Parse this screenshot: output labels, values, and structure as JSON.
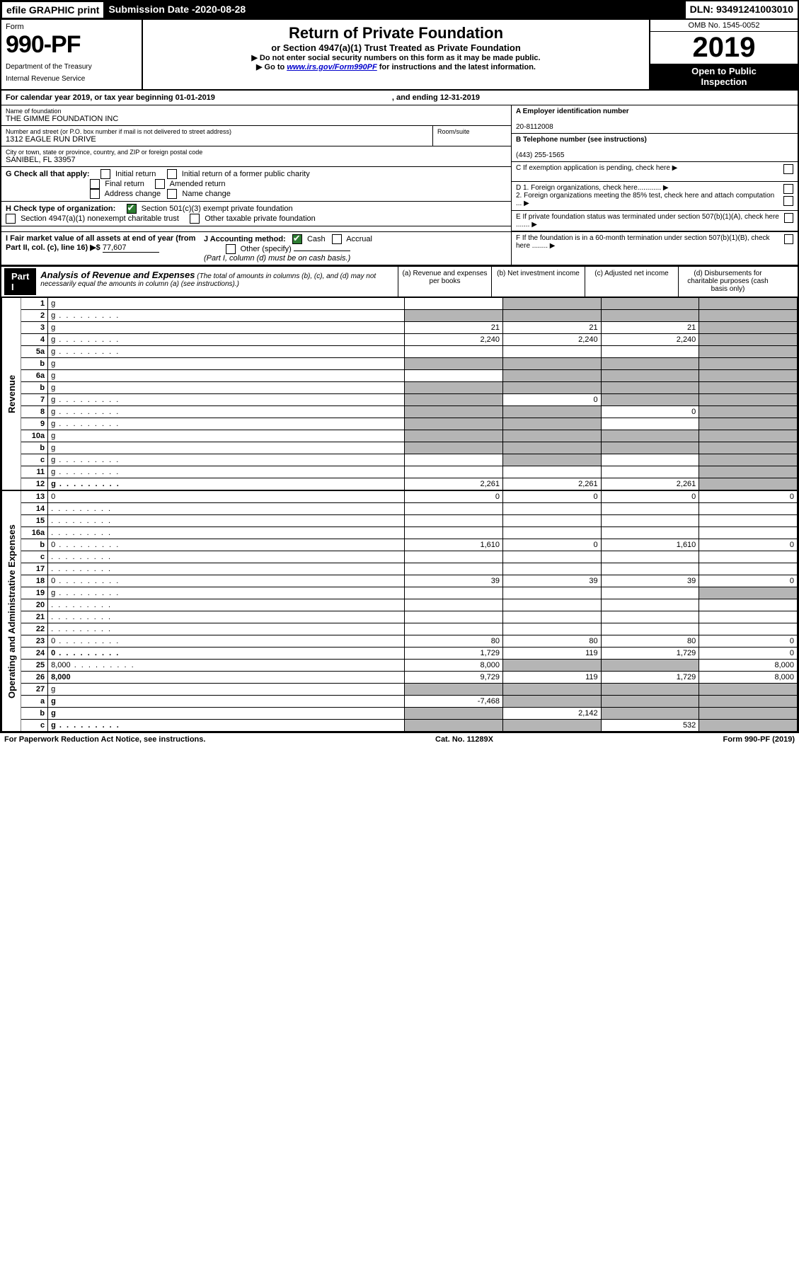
{
  "top": {
    "efile_lbl": "efile GRAPHIC print",
    "sub_lbl": "Submission Date - ",
    "sub_date": "2020-08-28",
    "dln_lbl": "DLN: ",
    "dln": "93491241003010"
  },
  "header": {
    "form_word": "Form",
    "form_num": "990-PF",
    "dept1": "Department of the Treasury",
    "dept2": "Internal Revenue Service",
    "title": "Return of Private Foundation",
    "subtitle": "or Section 4947(a)(1) Trust Treated as Private Foundation",
    "note1": "▶ Do not enter social security numbers on this form as it may be made public.",
    "note2a": "▶ Go to ",
    "note2_link": "www.irs.gov/Form990PF",
    "note2b": " for instructions and the latest information.",
    "omb": "OMB No. 1545-0052",
    "year": "2019",
    "open1": "Open to Public",
    "open2": "Inspection"
  },
  "cal": {
    "a": "For calendar year 2019, or tax year beginning 01-01-2019",
    "b": ", and ending 12-31-2019"
  },
  "info": {
    "name_lbl": "Name of foundation",
    "name": "THE GIMME FOUNDATION INC",
    "addr_lbl": "Number and street (or P.O. box number if mail is not delivered to street address)",
    "addr": "1312 EAGLE RUN DRIVE",
    "room_lbl": "Room/suite",
    "city_lbl": "City or town, state or province, country, and ZIP or foreign postal code",
    "city": "SANIBEL, FL  33957",
    "ein_lbl": "A Employer identification number",
    "ein": "20-8112008",
    "tel_lbl": "B Telephone number (see instructions)",
    "tel": "(443) 255-1565",
    "c_lbl": "C  If exemption application is pending, check here ▶",
    "d1": "D 1. Foreign organizations, check here............ ▶",
    "d2": "    2. Foreign organizations meeting the 85% test, check here and attach computation ... ▶",
    "e": "E  If private foundation status was terminated under section 507(b)(1)(A), check here ....... ▶",
    "f": "F  If the foundation is in a 60-month termination under section 507(b)(1)(B), check here ........ ▶"
  },
  "g": {
    "lbl": "G Check all that apply:",
    "o1": "Initial return",
    "o2": "Initial return of a former public charity",
    "o3": "Final return",
    "o4": "Amended return",
    "o5": "Address change",
    "o6": "Name change"
  },
  "h": {
    "lbl": "H Check type of organization:",
    "o1": "Section 501(c)(3) exempt private foundation",
    "o2": "Section 4947(a)(1) nonexempt charitable trust",
    "o3": "Other taxable private foundation"
  },
  "ij": {
    "i_lbl": "I Fair market value of all assets at end of year (from Part II, col. (c), line 16) ▶$",
    "i_val": "77,607",
    "j_lbl": "J Accounting method:",
    "j_cash": "Cash",
    "j_acc": "Accrual",
    "j_oth": "Other (specify)",
    "j_note": "(Part I, column (d) must be on cash basis.)"
  },
  "part1": {
    "bar": "Part I",
    "title": "Analysis of Revenue and Expenses",
    "note": "(The total of amounts in columns (b), (c), and (d) may not necessarily equal the amounts in column (a) (see instructions).)",
    "col_a": "(a)   Revenue and expenses per books",
    "col_b": "(b)  Net investment income",
    "col_c": "(c)  Adjusted net income",
    "col_d": "(d)  Disbursements for charitable purposes (cash basis only)"
  },
  "sections": {
    "rev": "Revenue",
    "op": "Operating and Administrative Expenses"
  },
  "rows": [
    {
      "n": "1",
      "d": "g",
      "a": "",
      "b": "g",
      "c": "g"
    },
    {
      "n": "2",
      "d": "g",
      "a": "g",
      "b": "g",
      "c": "g",
      "dots": 1
    },
    {
      "n": "3",
      "d": "g",
      "a": "21",
      "b": "21",
      "c": "21"
    },
    {
      "n": "4",
      "d": "g",
      "a": "2,240",
      "b": "2,240",
      "c": "2,240",
      "dots": 1
    },
    {
      "n": "5a",
      "d": "g",
      "a": "",
      "b": "",
      "c": "",
      "dots": 1
    },
    {
      "n": "b",
      "d": "g",
      "a": "g",
      "b": "g",
      "c": "g"
    },
    {
      "n": "6a",
      "d": "g",
      "a": "",
      "b": "g",
      "c": "g"
    },
    {
      "n": "b",
      "d": "g",
      "a": "g",
      "b": "g",
      "c": "g"
    },
    {
      "n": "7",
      "d": "g",
      "a": "g",
      "b": "0",
      "c": "g",
      "dots": 1
    },
    {
      "n": "8",
      "d": "g",
      "a": "g",
      "b": "g",
      "c": "0",
      "dots": 1
    },
    {
      "n": "9",
      "d": "g",
      "a": "g",
      "b": "g",
      "c": "",
      "dots": 1
    },
    {
      "n": "10a",
      "d": "g",
      "a": "g",
      "b": "g",
      "c": "g"
    },
    {
      "n": "b",
      "d": "g",
      "a": "g",
      "b": "g",
      "c": "g"
    },
    {
      "n": "c",
      "d": "g",
      "a": "",
      "b": "g",
      "c": "",
      "dots": 1
    },
    {
      "n": "11",
      "d": "g",
      "a": "",
      "b": "",
      "c": "",
      "dots": 1
    },
    {
      "n": "12",
      "d": "g",
      "a": "2,261",
      "b": "2,261",
      "c": "2,261",
      "bold": 1,
      "dots": 1
    }
  ],
  "rows2": [
    {
      "n": "13",
      "d": "0",
      "a": "0",
      "b": "0",
      "c": "0"
    },
    {
      "n": "14",
      "d": "",
      "a": "",
      "b": "",
      "c": "",
      "dots": 1
    },
    {
      "n": "15",
      "d": "",
      "a": "",
      "b": "",
      "c": "",
      "dots": 1
    },
    {
      "n": "16a",
      "d": "",
      "a": "",
      "b": "",
      "c": "",
      "dots": 1
    },
    {
      "n": "b",
      "d": "0",
      "a": "1,610",
      "b": "0",
      "c": "1,610",
      "dots": 1
    },
    {
      "n": "c",
      "d": "",
      "a": "",
      "b": "",
      "c": "",
      "dots": 1
    },
    {
      "n": "17",
      "d": "",
      "a": "",
      "b": "",
      "c": "",
      "dots": 1
    },
    {
      "n": "18",
      "d": "0",
      "a": "39",
      "b": "39",
      "c": "39",
      "dots": 1
    },
    {
      "n": "19",
      "d": "g",
      "a": "",
      "b": "",
      "c": "",
      "dots": 1
    },
    {
      "n": "20",
      "d": "",
      "a": "",
      "b": "",
      "c": "",
      "dots": 1
    },
    {
      "n": "21",
      "d": "",
      "a": "",
      "b": "",
      "c": "",
      "dots": 1
    },
    {
      "n": "22",
      "d": "",
      "a": "",
      "b": "",
      "c": "",
      "dots": 1
    },
    {
      "n": "23",
      "d": "0",
      "a": "80",
      "b": "80",
      "c": "80",
      "dots": 1
    },
    {
      "n": "24",
      "d": "0",
      "a": "1,729",
      "b": "119",
      "c": "1,729",
      "bold": 1,
      "dots": 1
    },
    {
      "n": "25",
      "d": "8,000",
      "a": "8,000",
      "b": "g",
      "c": "g",
      "dots": 1
    },
    {
      "n": "26",
      "d": "8,000",
      "a": "9,729",
      "b": "119",
      "c": "1,729",
      "bold": 1
    },
    {
      "n": "27",
      "d": "g",
      "a": "g",
      "b": "g",
      "c": "g"
    },
    {
      "n": "a",
      "d": "g",
      "a": "-7,468",
      "b": "g",
      "c": "g",
      "bold": 1
    },
    {
      "n": "b",
      "d": "g",
      "a": "g",
      "b": "2,142",
      "c": "g",
      "bold": 1
    },
    {
      "n": "c",
      "d": "g",
      "a": "g",
      "b": "g",
      "c": "532",
      "bold": 1,
      "dots": 1
    }
  ],
  "footer": {
    "l": "For Paperwork Reduction Act Notice, see instructions.",
    "m": "Cat. No. 11289X",
    "r": "Form 990-PF (2019)"
  }
}
